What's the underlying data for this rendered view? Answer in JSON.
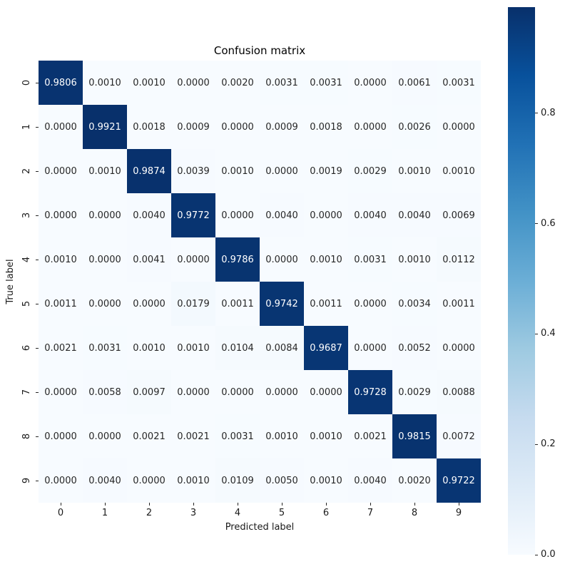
{
  "chart_data": {
    "type": "heatmap",
    "title": "Confusion matrix",
    "xlabel": "Predicted label",
    "ylabel": "True label",
    "x_tick_labels": [
      "0",
      "1",
      "2",
      "3",
      "4",
      "5",
      "6",
      "7",
      "8",
      "9"
    ],
    "y_tick_labels": [
      "0",
      "1",
      "2",
      "3",
      "4",
      "5",
      "6",
      "7",
      "8",
      "9"
    ],
    "value_decimals": 4,
    "vmin": 0.0,
    "vmax": 0.9921,
    "colormap_name": "Blues",
    "colormap_stops": [
      "#f7fbff",
      "#deebf7",
      "#c6dbef",
      "#9ecae1",
      "#6baed6",
      "#4292c6",
      "#2171b5",
      "#08519c",
      "#08306b"
    ],
    "annotation_dark_text_color": "#262626",
    "annotation_light_text_color": "#ffffff",
    "colorbar_ticks": [
      "0.0",
      "0.2",
      "0.4",
      "0.6",
      "0.8"
    ],
    "colorbar_tick_values": [
      0.0,
      0.2,
      0.4,
      0.6,
      0.8
    ],
    "matrix": [
      [
        0.9806,
        0.001,
        0.001,
        0.0,
        0.002,
        0.0031,
        0.0031,
        0.0,
        0.0061,
        0.0031
      ],
      [
        0.0,
        0.9921,
        0.0018,
        0.0009,
        0.0,
        0.0009,
        0.0018,
        0.0,
        0.0026,
        0.0
      ],
      [
        0.0,
        0.001,
        0.9874,
        0.0039,
        0.001,
        0.0,
        0.0019,
        0.0029,
        0.001,
        0.001
      ],
      [
        0.0,
        0.0,
        0.004,
        0.9772,
        0.0,
        0.004,
        0.0,
        0.004,
        0.004,
        0.0069
      ],
      [
        0.001,
        0.0,
        0.0041,
        0.0,
        0.9786,
        0.0,
        0.001,
        0.0031,
        0.001,
        0.0112
      ],
      [
        0.0011,
        0.0,
        0.0,
        0.0179,
        0.0011,
        0.9742,
        0.0011,
        0.0,
        0.0034,
        0.0011
      ],
      [
        0.0021,
        0.0031,
        0.001,
        0.001,
        0.0104,
        0.0084,
        0.9687,
        0.0,
        0.0052,
        0.0
      ],
      [
        0.0,
        0.0058,
        0.0097,
        0.0,
        0.0,
        0.0,
        0.0,
        0.9728,
        0.0029,
        0.0088
      ],
      [
        0.0,
        0.0,
        0.0021,
        0.0021,
        0.0031,
        0.001,
        0.001,
        0.0021,
        0.9815,
        0.0072
      ],
      [
        0.0,
        0.004,
        0.0,
        0.001,
        0.0109,
        0.005,
        0.001,
        0.004,
        0.002,
        0.9722
      ]
    ]
  }
}
